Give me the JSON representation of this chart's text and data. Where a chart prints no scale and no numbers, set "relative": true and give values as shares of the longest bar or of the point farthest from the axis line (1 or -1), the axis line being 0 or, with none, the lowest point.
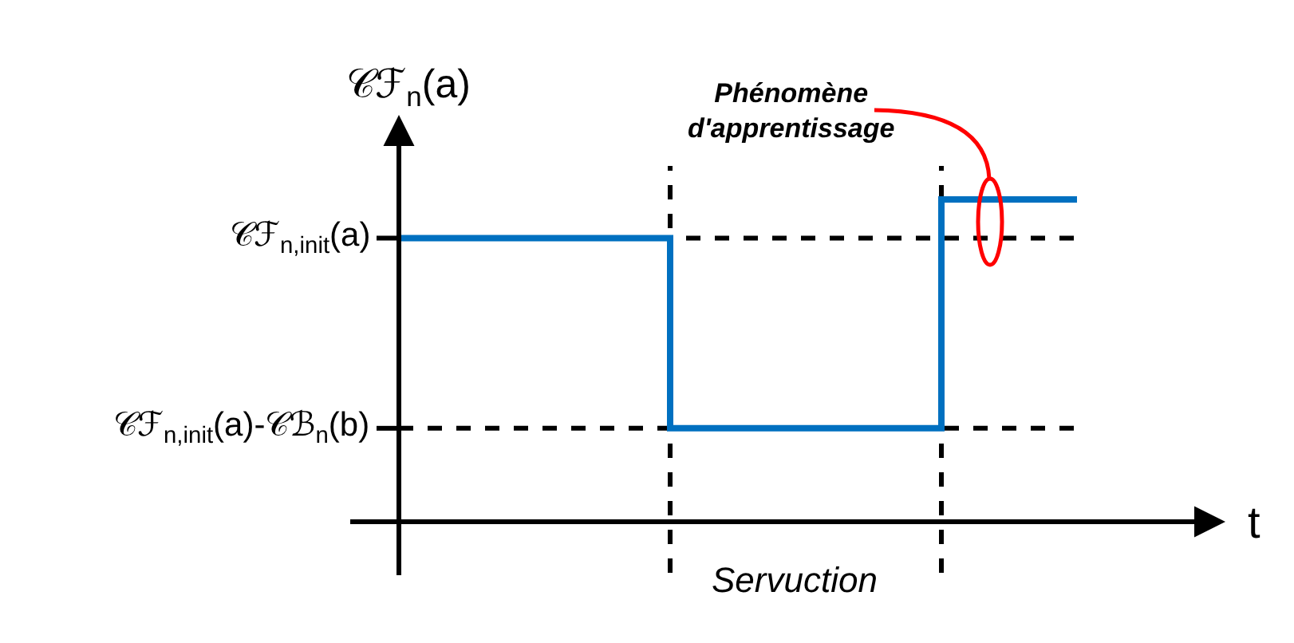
{
  "chart_data": {
    "type": "step",
    "relative": true,
    "xlabel": "t",
    "ylabel": "𝒞ℱ$_{n}$(a)",
    "categories": [
      null,
      null,
      null,
      null,
      null,
      null
    ],
    "series": [
      {
        "color": "#0070c0",
        "values": [
          0.88,
          0.88,
          0.29,
          0.29,
          1,
          1
        ]
      }
    ],
    "marker": "none",
    "line_style": "solid",
    "ref_lines": [
      {
        "axis": "y",
        "value": 0.88,
        "label": "𝒞ℱ$_{n,init}$(a)",
        "line_style": "dashed",
        "color": "#000000"
      },
      {
        "axis": "y",
        "value": 0.29,
        "label": "𝒞ℱ$_{n,init}$(a)-𝒞ℬ$_{n}$(b)",
        "line_style": "dashed",
        "color": "#000000"
      }
    ],
    "annotations": [
      "Servuction",
      "Phénomène d'apprentissage"
    ]
  }
}
